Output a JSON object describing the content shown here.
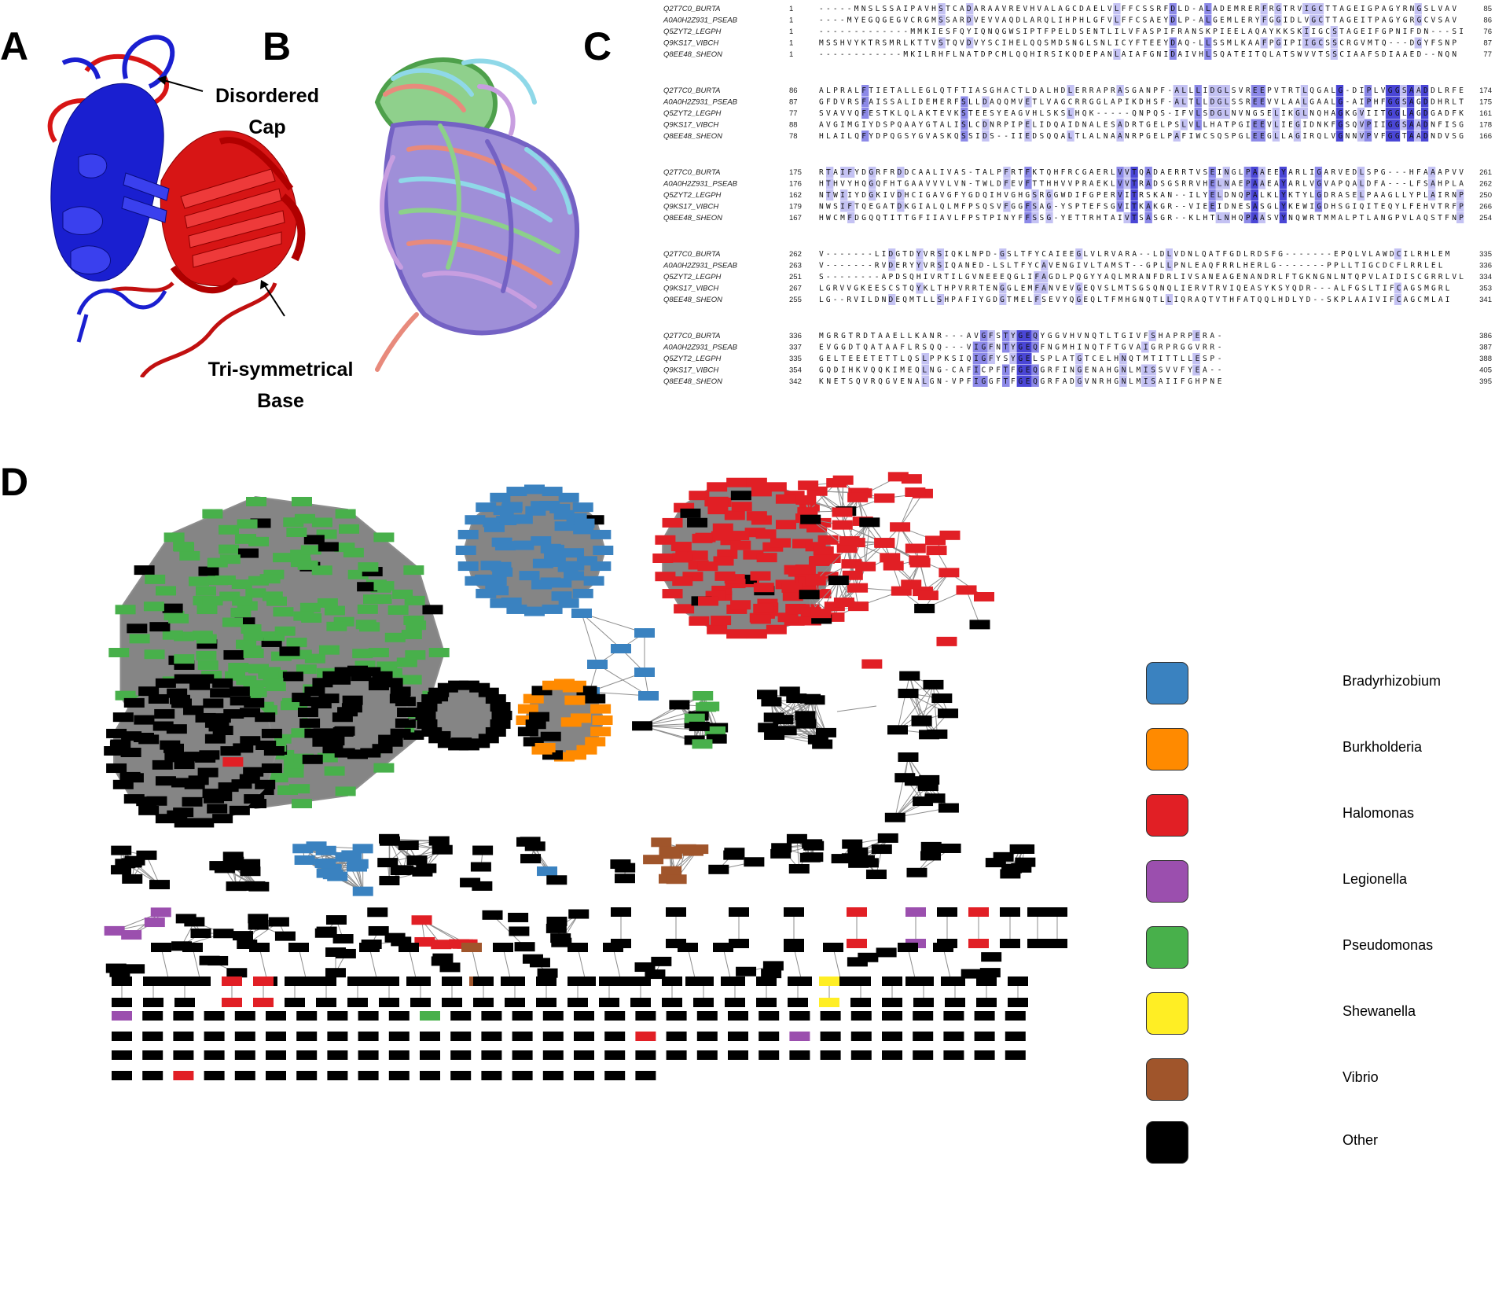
{
  "panels": [
    "A",
    "B",
    "C",
    "D"
  ],
  "panel_a": {
    "cap_label_1": "Disordered",
    "cap_label_2": "Cap",
    "base_label_1": "Tri-symmetrical",
    "base_label_2": "Base"
  },
  "alignment": {
    "blocks": [
      {
        "rows": [
          {
            "name": "Q2T7C0_BURTA",
            "start": "1",
            "seq": "-----MNSLSSAIPAVHSTCADARAAVREVHVALAGCDAELVLFFCSSRFDLD-ALADEMRERFRGTRVIGCTTAGEIGPAGYRNGSLVAV",
            "end": "85"
          },
          {
            "name": "A0A0H2Z931_PSEAB",
            "start": "1",
            "seq": "----MYEGQGEGVCRGMSSARDVEVVAQDLARQLIHPHLGFVLFFCSAEYDLP-ALGEMLERYFGGIDLVGCTTAGEITPAGYGRGCVSAV",
            "end": "86"
          },
          {
            "name": "Q5ZYT2_LEGPH",
            "start": "1",
            "seq": "-------------MMKIESFQYIQNQGWSIPTFPELDSENTLILVFASPIFRANSKPIEELAQAYKKSKIIGCSTAGEIFGPNIFDN---SI",
            "end": "76"
          },
          {
            "name": "Q9KS17_VIBCH",
            "start": "1",
            "seq": "MSSHVYKTRSMRLKTTVSTQVDVYSCIHELQQSMDSNGLSNLICYFTEEYDAQ-LLSSMLKAAFPGIPIIGCSSCRGVMTQ---DGYFSNP",
            "end": "87"
          },
          {
            "name": "Q8EE48_SHEON",
            "start": "1",
            "seq": "------------MKILRHFLNATDPCMLQQHIRSIKQDEPANLAIAFGNIDAIVHLSQATEITQLATSWVVTSSCIAAFSDIAAED--NQN",
            "end": "77"
          }
        ]
      },
      {
        "rows": [
          {
            "name": "Q2T7C0_BURTA",
            "start": "86",
            "seq": "ALPRALFTIETALLEGLQTFTIASGHACTLDALHDLERRAPRASGANPF-ALLLIDGLSVREEPVTRTLQGALG-DIPLVGGSAADDLRFE",
            "end": "174"
          },
          {
            "name": "A0A0H2Z931_PSEAB",
            "start": "87",
            "seq": "GFDVRSFAISSALIDEMERFSLLDAQQMVETLVAGCRRGGLAPIKDHSF-ALTLLDGLSSREEVVLAALGAALG-AIPHFGGSAGDDHRLT",
            "end": "175"
          },
          {
            "name": "Q5ZYT2_LEGPH",
            "start": "77",
            "seq": "SVAVVQFESTKLQLAKTEVKSTEESYEAGVHLSKSLHQK-----QNPQS-IFVLSDGLNVNGSELIKGLNQHAGKGVIITGGLAGDGADFK",
            "end": "161"
          },
          {
            "name": "Q9KS17_VIBCH",
            "start": "88",
            "seq": "AVGIMGIYDSPQAAYGTALISLCDNRPIPELIDQAIDNALESADRTGELPSLVLLHATPGIEEVLIEGIDNKFGSQVPIIGGSAADNFISG",
            "end": "178"
          },
          {
            "name": "Q8EE48_SHEON",
            "start": "78",
            "seq": "HLAILQFYDPQGSYGVASKQSSIDS--IIEDSQQALTLALNAANRPGELPAFIWCSQSPGLEEGLLAGIRQLVGNNVPVFGGTAADNDVSG",
            "end": "166"
          }
        ]
      },
      {
        "rows": [
          {
            "name": "Q2T7C0_BURTA",
            "start": "175",
            "seq": "RTAIFYDGRFRDDCAALIVAS-TALPFRTFKTQHFRCGAERLVVTQADAERRTVSEINGLPAAEEYARLIGARVEDLSPG---HFAAAPVV",
            "end": "261"
          },
          {
            "name": "A0A0H2Z931_PSEAB",
            "start": "176",
            "seq": "HTHVYHQGQFHTGAAVVVLVN-TWLDFEVFTTHHVVPRAEKLVVTRADSGSRRVHELNAEPAAEAYARLVGVAPQALDFA---LFSAHPLA",
            "end": "262"
          },
          {
            "name": "Q5ZYT2_LEGPH",
            "start": "162",
            "seq": "NTWIIYDGKIVDHCIGAVGFYGDQIHVGHGSRGGWDIFGPERVITRSKAN--ILYELDNQPALKLYKTYLGDRASELPAAGLLYPLAIRNP",
            "end": "250"
          },
          {
            "name": "Q9KS17_VIBCH",
            "start": "179",
            "seq": "NWSIFTQEGATDKGIALQLMFPSQSVFGGFSAG-YSPTEFSGVITKAKGR--VIEEIDNESASGLYKEWIGDHSGIQITEQYLFEHVTRFP",
            "end": "266"
          },
          {
            "name": "Q8EE48_SHEON",
            "start": "167",
            "seq": "HWCMFDGQQTITTGFIIAVLFPSTPINYFFSSG-YETTRHTAIVTSASGR--KLHTLNHQPAASVYNQWRTMMALPTLANGPVLAQSTFNP",
            "end": "254"
          }
        ]
      },
      {
        "rows": [
          {
            "name": "Q2T7C0_BURTA",
            "start": "262",
            "seq": "V-------LIDGTDYVRSIQKLNPD-GSLTFYCAIEEGLVLRVARA--LDLVDNLQATFGDLRDSFG-------EPQLVLAWDCILRHLEM",
            "end": "335"
          },
          {
            "name": "A0A0H2Z931_PSEAB",
            "start": "263",
            "seq": "V-------RVDERYYVRSIQANED-LSLTFYCAVENGIVLTAMST--GPLLPNLEAQFRRLHERLG-------PPLLTIGCDCFLRRLEL",
            "end": "336"
          },
          {
            "name": "Q5ZYT2_LEGPH",
            "start": "251",
            "seq": "S--------APDSQHIVRTILGVNEEEQGLIFAGDLPQGYYAQLMRANFDRLIVSANEAGENANDRLFTGKNGNLNTQPVLAIDISCGRRLVL",
            "end": "334"
          },
          {
            "name": "Q9KS17_VIBCH",
            "start": "267",
            "seq": "LGRVVGKEESCSTQYKLTHPVRRTENGGLEMFANVEVGEQVSLMTSGSQNQLIERVTRVIQEASYKSYQDR---ALFGSLTIFCAGSMGRL",
            "end": "353"
          },
          {
            "name": "Q8EE48_SHEON",
            "start": "255",
            "seq": "LG--RVILDNDEQMTLLSHPAFIYGDGTMELFSEVYQGEQLTFMHGNQTLLIQRAQTVTHFATQQLHDLYD--SKPLAAIVIFCAGCMLAI",
            "end": "341"
          }
        ]
      },
      {
        "rows": [
          {
            "name": "Q2T7C0_BURTA",
            "start": "336",
            "seq": "MGRGTRDTAAELLKANR---AVGFSTYGEQYGGVHVNQTLTGIVFSHAPRPERA-",
            "end": "386"
          },
          {
            "name": "A0A0H2Z931_PSEAB",
            "start": "337",
            "seq": "EVGGDTQATAAFLRSQQ---VIGFNTYGEQFNGMHINQTFTGVAIGRPRGGVRR-",
            "end": "387"
          },
          {
            "name": "Q5ZYT2_LEGPH",
            "start": "335",
            "seq": "GELTEEETETTLQSLPPKSIQIGFYSYGELSPLATGTCELHNQTMTITTLLESP-",
            "end": "388"
          },
          {
            "name": "Q9KS17_VIBCH",
            "start": "354",
            "seq": "GQDIHKVQQKIMEQLNG-CAFICPFTFGEQGRFINGENAHGNLMISSVVFYEA--",
            "end": "405"
          },
          {
            "name": "Q8EE48_SHEON",
            "start": "342",
            "seq": "KNETSQVRQGVENALGN-VPFIGGFTFGEQGRFADGVNRHGNLMISAIIFGHPNE",
            "end": "395"
          }
        ]
      }
    ]
  },
  "legend": [
    {
      "label": "Bradyrhizobium",
      "color": "#3a82c0"
    },
    {
      "label": "Burkholderia",
      "color": "#ff8a00"
    },
    {
      "label": "Halomonas",
      "color": "#e11f25"
    },
    {
      "label": "Legionella",
      "color": "#9b4fae"
    },
    {
      "label": "Pseudomonas",
      "color": "#48b04b"
    },
    {
      "label": "Shewanella",
      "color": "#ffee24"
    },
    {
      "label": "Vibrio",
      "color": "#a0552b"
    },
    {
      "label": "Other",
      "color": "#000000"
    }
  ],
  "colors": {
    "network_edge": "#8d8d8d",
    "cluster_fill": "#858585",
    "helix_blue": "#1a1fd0",
    "helix_red": "#d71515",
    "align_dark": "#4a46d6",
    "align_mid": "#8c89e8",
    "align_light": "#c4c2f3"
  }
}
